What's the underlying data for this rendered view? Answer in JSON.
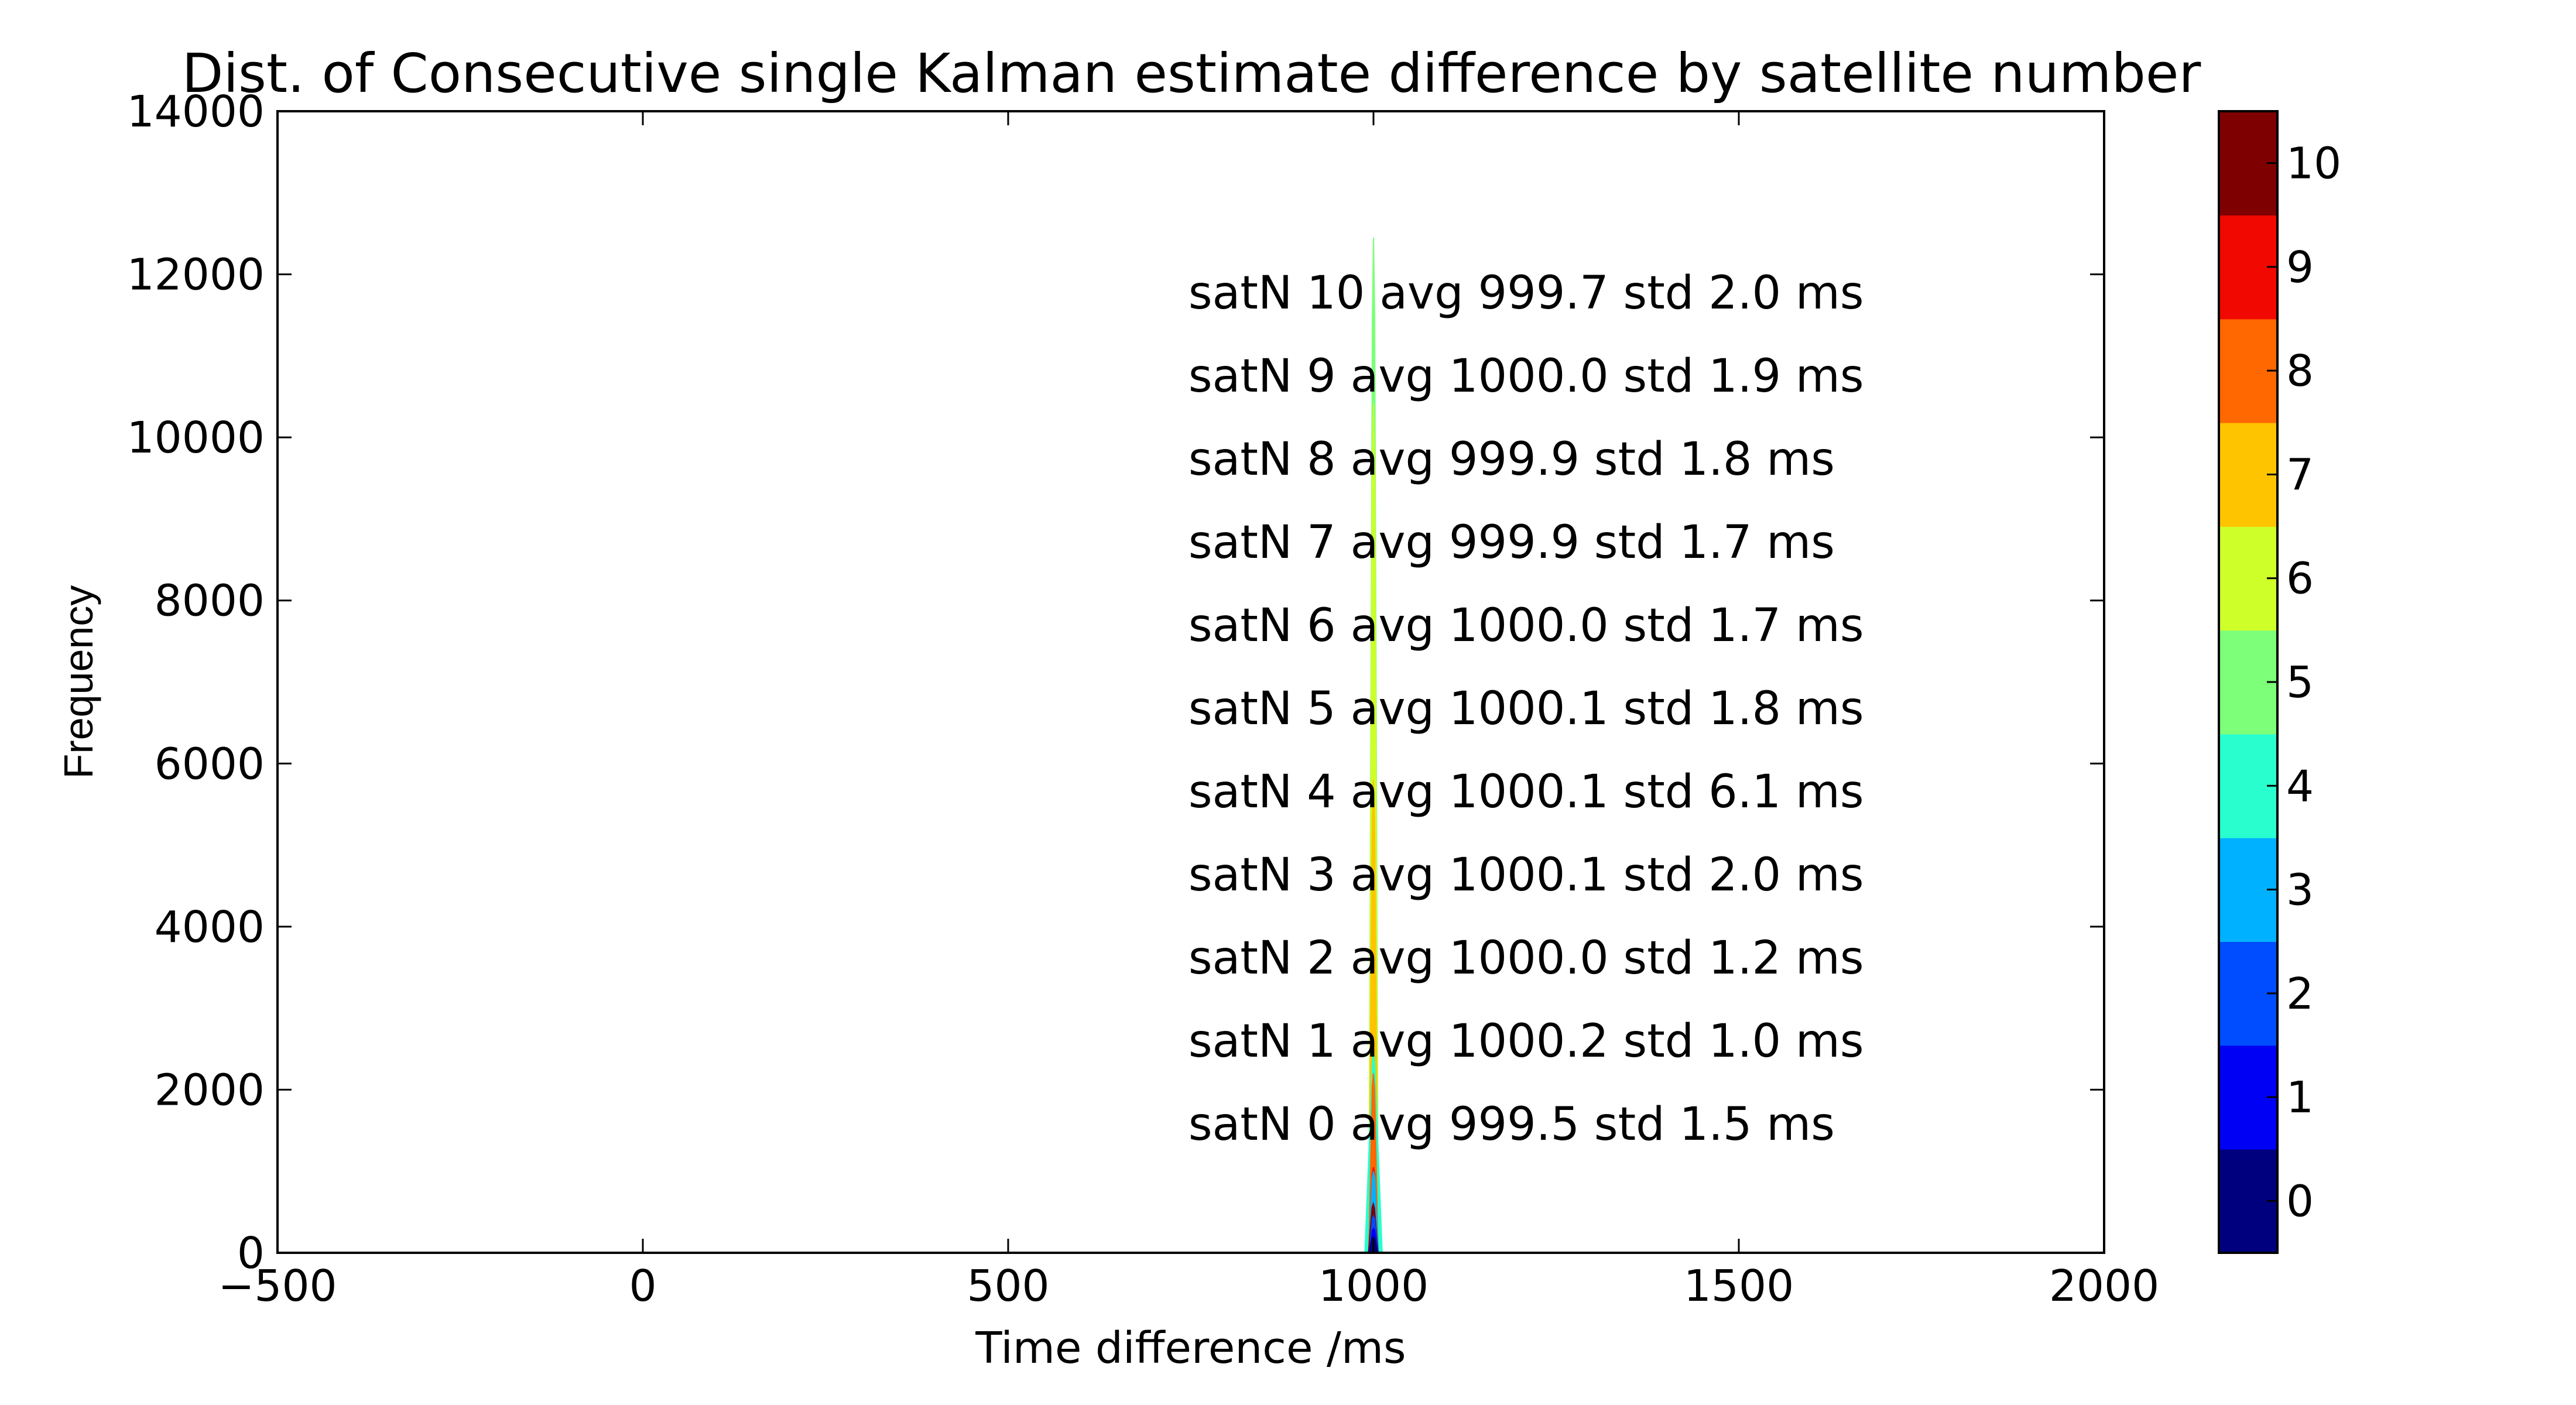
{
  "chart_data": {
    "type": "histogram",
    "title": "Dist. of Consecutive single Kalman estimate difference by satellite number",
    "xlabel": "Time difference /ms",
    "ylabel": "Frequency",
    "xlim": [
      -500,
      2000
    ],
    "ylim": [
      0,
      14000
    ],
    "x_ticks": [
      -500,
      0,
      500,
      1000,
      1500,
      2000
    ],
    "x_tick_labels": [
      "−500",
      "0",
      "500",
      "1000",
      "1500",
      "2000"
    ],
    "y_ticks": [
      0,
      2000,
      4000,
      6000,
      8000,
      10000,
      12000,
      14000
    ],
    "y_tick_labels": [
      "0",
      "2000",
      "4000",
      "6000",
      "8000",
      "10000",
      "12000",
      "14000"
    ],
    "grid": false,
    "series": [
      {
        "satN": 0,
        "avg": 999.5,
        "std": 1.5,
        "peak": 200,
        "color": "#00007f"
      },
      {
        "satN": 1,
        "avg": 1000.2,
        "std": 1.0,
        "peak": 300,
        "color": "#0000f5"
      },
      {
        "satN": 2,
        "avg": 1000.0,
        "std": 1.2,
        "peak": 450,
        "color": "#004dff"
      },
      {
        "satN": 3,
        "avg": 1000.1,
        "std": 2.0,
        "peak": 1000,
        "color": "#00b1ff"
      },
      {
        "satN": 4,
        "avg": 1000.1,
        "std": 6.1,
        "peak": 2500,
        "color": "#29ffce"
      },
      {
        "satN": 5,
        "avg": 1000.1,
        "std": 1.8,
        "peak": 12450,
        "color": "#7dff7a"
      },
      {
        "satN": 6,
        "avg": 1000.0,
        "std": 1.7,
        "peak": 10400,
        "color": "#ceff29"
      },
      {
        "satN": 7,
        "avg": 999.9,
        "std": 1.7,
        "peak": 5800,
        "color": "#ffc400"
      },
      {
        "satN": 8,
        "avg": 999.9,
        "std": 1.8,
        "peak": 2200,
        "color": "#ff6800"
      },
      {
        "satN": 9,
        "avg": 1000.0,
        "std": 1.9,
        "peak": 1050,
        "color": "#f10800"
      },
      {
        "satN": 10,
        "avg": 999.7,
        "std": 2.0,
        "peak": 600,
        "color": "#7f0000"
      }
    ],
    "annotations": [
      "satN 10 avg 999.7 std 2.0 ms",
      "satN 9 avg 1000.0 std 1.9 ms",
      "satN 8 avg 999.9 std 1.8 ms",
      "satN 7 avg 999.9 std 1.7 ms",
      "satN 6 avg 1000.0 std 1.7 ms",
      "satN 5 avg 1000.1 std 1.8 ms",
      "satN 4 avg 1000.1 std 6.1 ms",
      "satN 3 avg 1000.1 std 2.0 ms",
      "satN 2 avg 1000.0 std 1.2 ms",
      "satN 1 avg 1000.2 std 1.0 ms",
      "satN 0 avg 999.5 std 1.5 ms"
    ],
    "colorbar": {
      "range": [
        -0.5,
        10.5
      ],
      "ticks": [
        0,
        1,
        2,
        3,
        4,
        5,
        6,
        7,
        8,
        9,
        10
      ],
      "tick_labels": [
        "0",
        "1",
        "2",
        "3",
        "4",
        "5",
        "6",
        "7",
        "8",
        "9",
        "10"
      ],
      "colors": [
        "#00007f",
        "#0000f5",
        "#004dff",
        "#00b1ff",
        "#29ffce",
        "#7dff7a",
        "#ceff29",
        "#ffc400",
        "#ff6800",
        "#f10800",
        "#7f0000"
      ]
    }
  }
}
